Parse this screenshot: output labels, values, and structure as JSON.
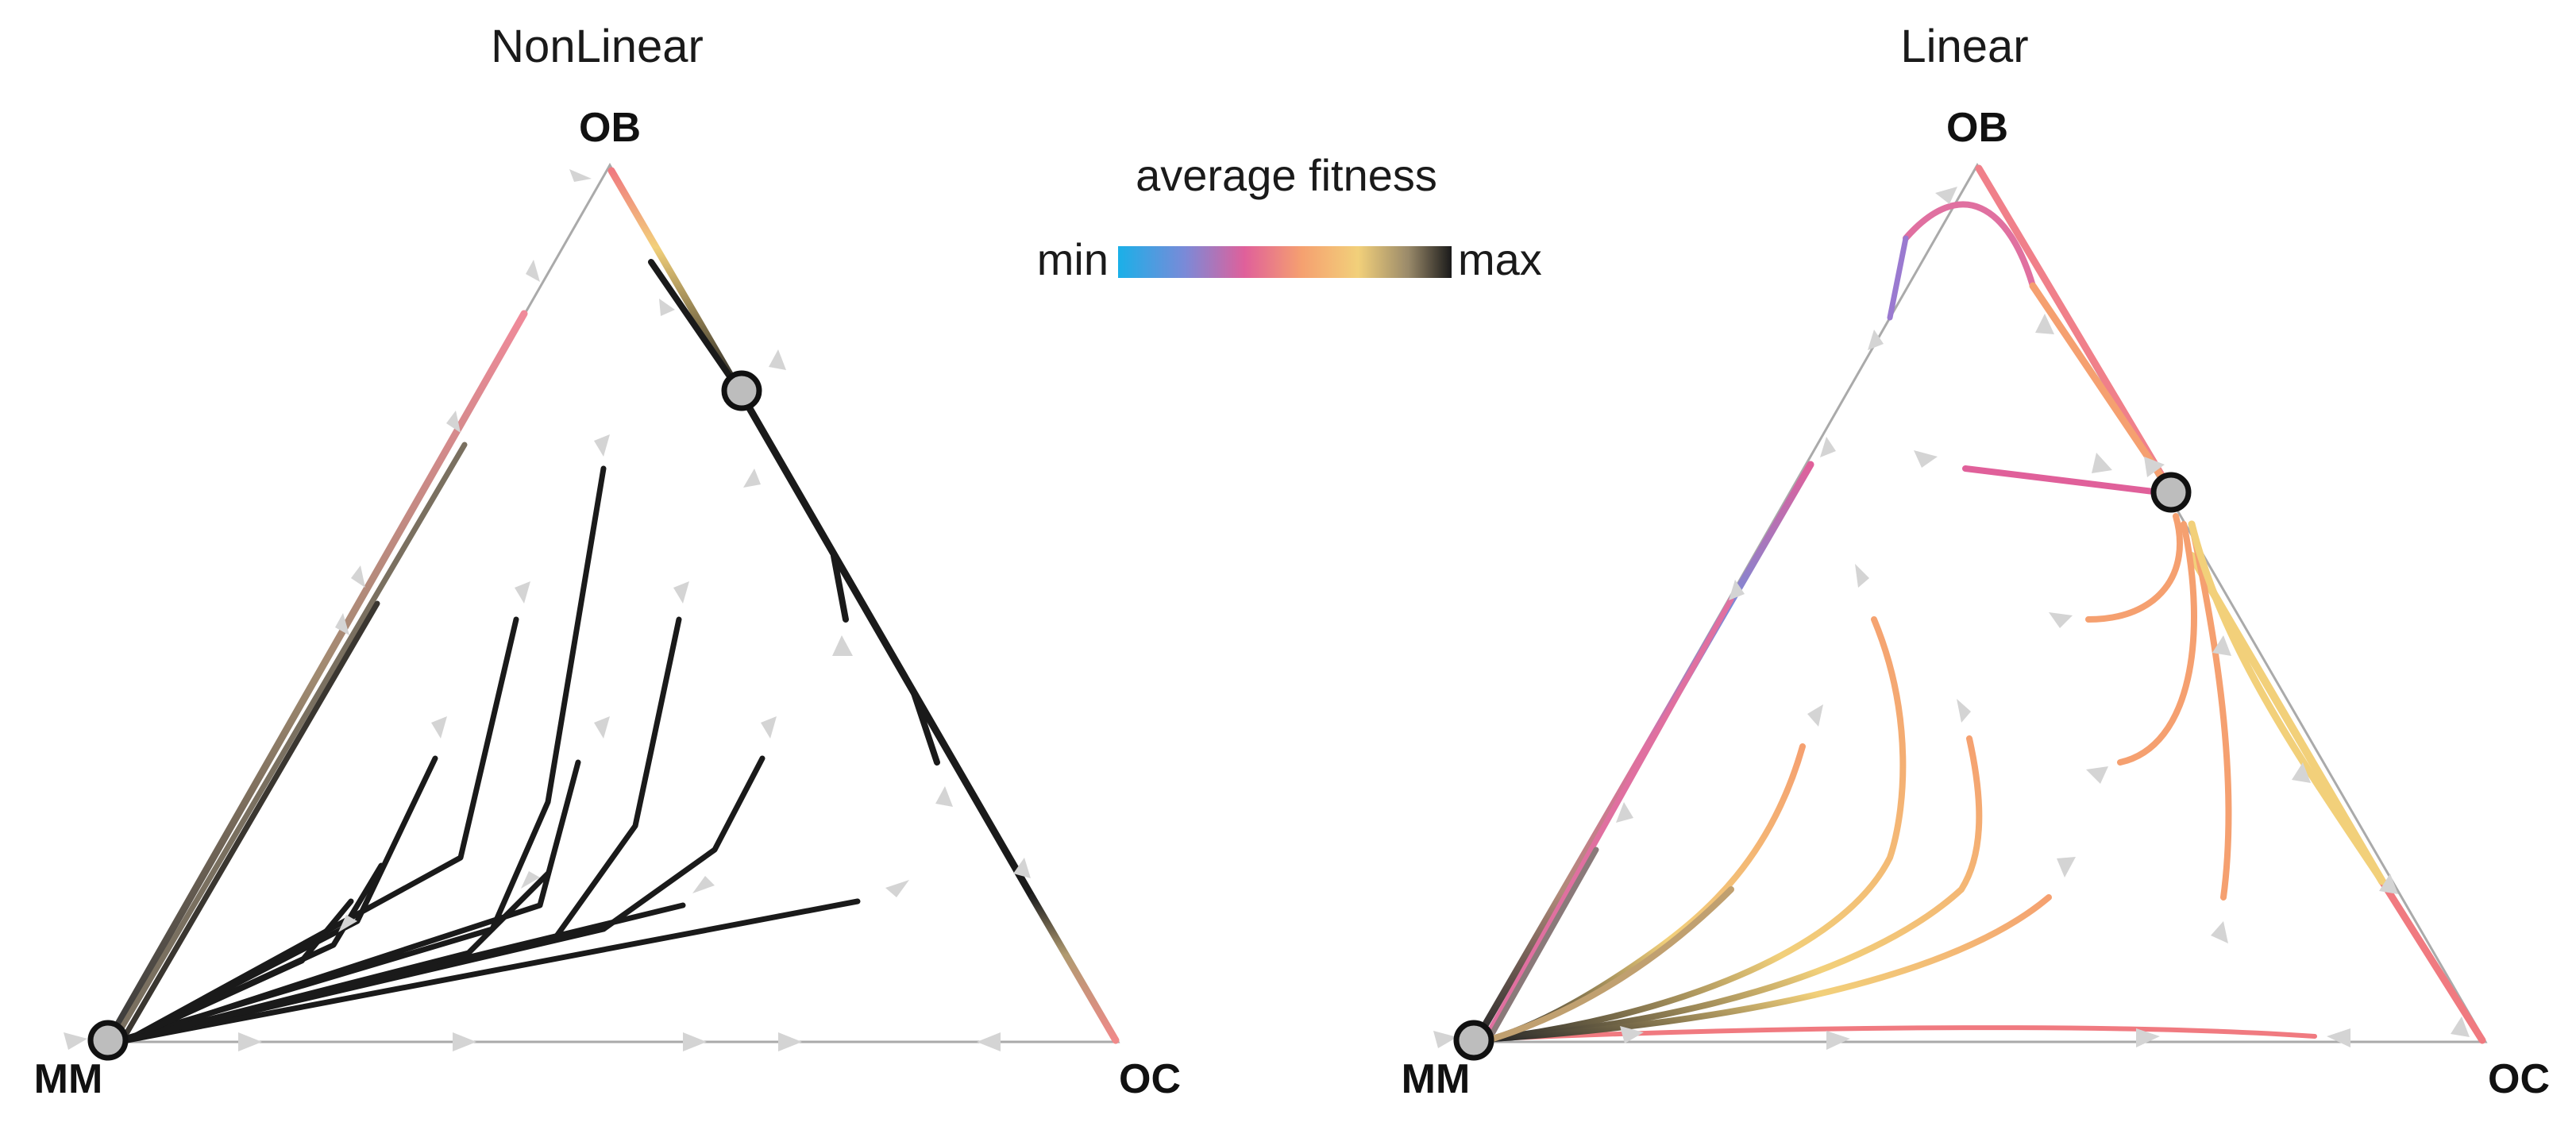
{
  "panels": [
    {
      "id": "nonlinear",
      "title": "NonLinear",
      "vertices": {
        "top": "OB",
        "left": "MM",
        "right": "OC"
      }
    },
    {
      "id": "linear",
      "title": "Linear",
      "vertices": {
        "top": "OB",
        "left": "MM",
        "right": "OC"
      }
    }
  ],
  "colorbar": {
    "title": "average fitness",
    "min_label": "min",
    "max_label": "max",
    "stops": [
      "#1ab0e8",
      "#7a8ad8",
      "#e0609a",
      "#f5a070",
      "#f2d07a",
      "#9a8a6a",
      "#1a1a1a"
    ]
  },
  "colors": {
    "edge": "#aaaaaa",
    "arrow": "#d4d4d4",
    "fixed_point_fill": "#bdbdbd",
    "fixed_point_stroke": "#111111"
  }
}
